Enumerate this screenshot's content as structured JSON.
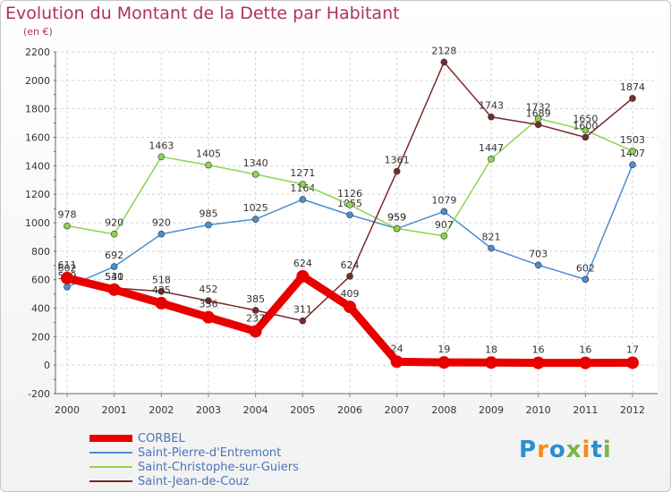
{
  "title": "Evolution du Montant de la Dette par Habitant",
  "subtitle": "(en €)",
  "logo": {
    "text": "Proxiti",
    "colors": [
      "#2a8fd0",
      "#f28c1c",
      "#2a8fd0",
      "#7ab648",
      "#f28c1c",
      "#2a8fd0",
      "#7ab648"
    ]
  },
  "chart_data": {
    "type": "line",
    "title": "Evolution du Montant de la Dette par Habitant",
    "subtitle": "(en €)",
    "xlabel": "",
    "ylabel": "",
    "ylim": [
      -200,
      2200
    ],
    "yticks": [
      -200,
      0,
      200,
      400,
      600,
      800,
      1000,
      1200,
      1400,
      1600,
      1800,
      2000,
      2200
    ],
    "grid": true,
    "legend_position": "bottom-left",
    "x": [
      "2000",
      "2001",
      "2002",
      "2003",
      "2004",
      "2005",
      "2006",
      "2007",
      "2008",
      "2009",
      "2010",
      "2011",
      "2012"
    ],
    "series": [
      {
        "name": "CORBEL",
        "color": "#e80000",
        "emphasis": true,
        "values": [
          611,
          530,
          435,
          336,
          237,
          624,
          409,
          24,
          19,
          18,
          16,
          16,
          17
        ],
        "labels": [
          "611",
          "530",
          "435",
          "336",
          "237",
          "624",
          "409",
          "24",
          "19",
          "18",
          "16",
          "16",
          "17"
        ]
      },
      {
        "name": "Saint-Pierre-d'Entremont",
        "color": "#4b8fcf",
        "values": [
          549,
          692,
          920,
          985,
          1025,
          1164,
          1055,
          959,
          1079,
          821,
          703,
          602,
          1407
        ],
        "labels": [
          "549",
          "692",
          "920",
          "985",
          "1025",
          "1164",
          "1055",
          "959",
          "1079",
          "821",
          "703",
          "602",
          "1407"
        ]
      },
      {
        "name": "Saint-Christophe-sur-Guiers",
        "color": "#8fd44f",
        "values": [
          978,
          920,
          1463,
          1405,
          1340,
          1271,
          1126,
          959,
          907,
          1447,
          1732,
          1650,
          1503
        ],
        "labels": [
          "978",
          "920",
          "1463",
          "1405",
          "1340",
          "1271",
          "1126",
          "959",
          "907",
          "1447",
          "1732",
          "1650",
          "1503"
        ]
      },
      {
        "name": "Saint-Jean-de-Couz",
        "color": "#7a2a2a",
        "values": [
          602,
          541,
          518,
          452,
          385,
          311,
          624,
          1361,
          2128,
          1743,
          1689,
          1600,
          1874
        ],
        "labels": [
          "602",
          "541",
          "518",
          "452",
          "385",
          "311",
          "624",
          "1361",
          "2128",
          "1743",
          "1689",
          "1600",
          "1874"
        ]
      }
    ]
  }
}
